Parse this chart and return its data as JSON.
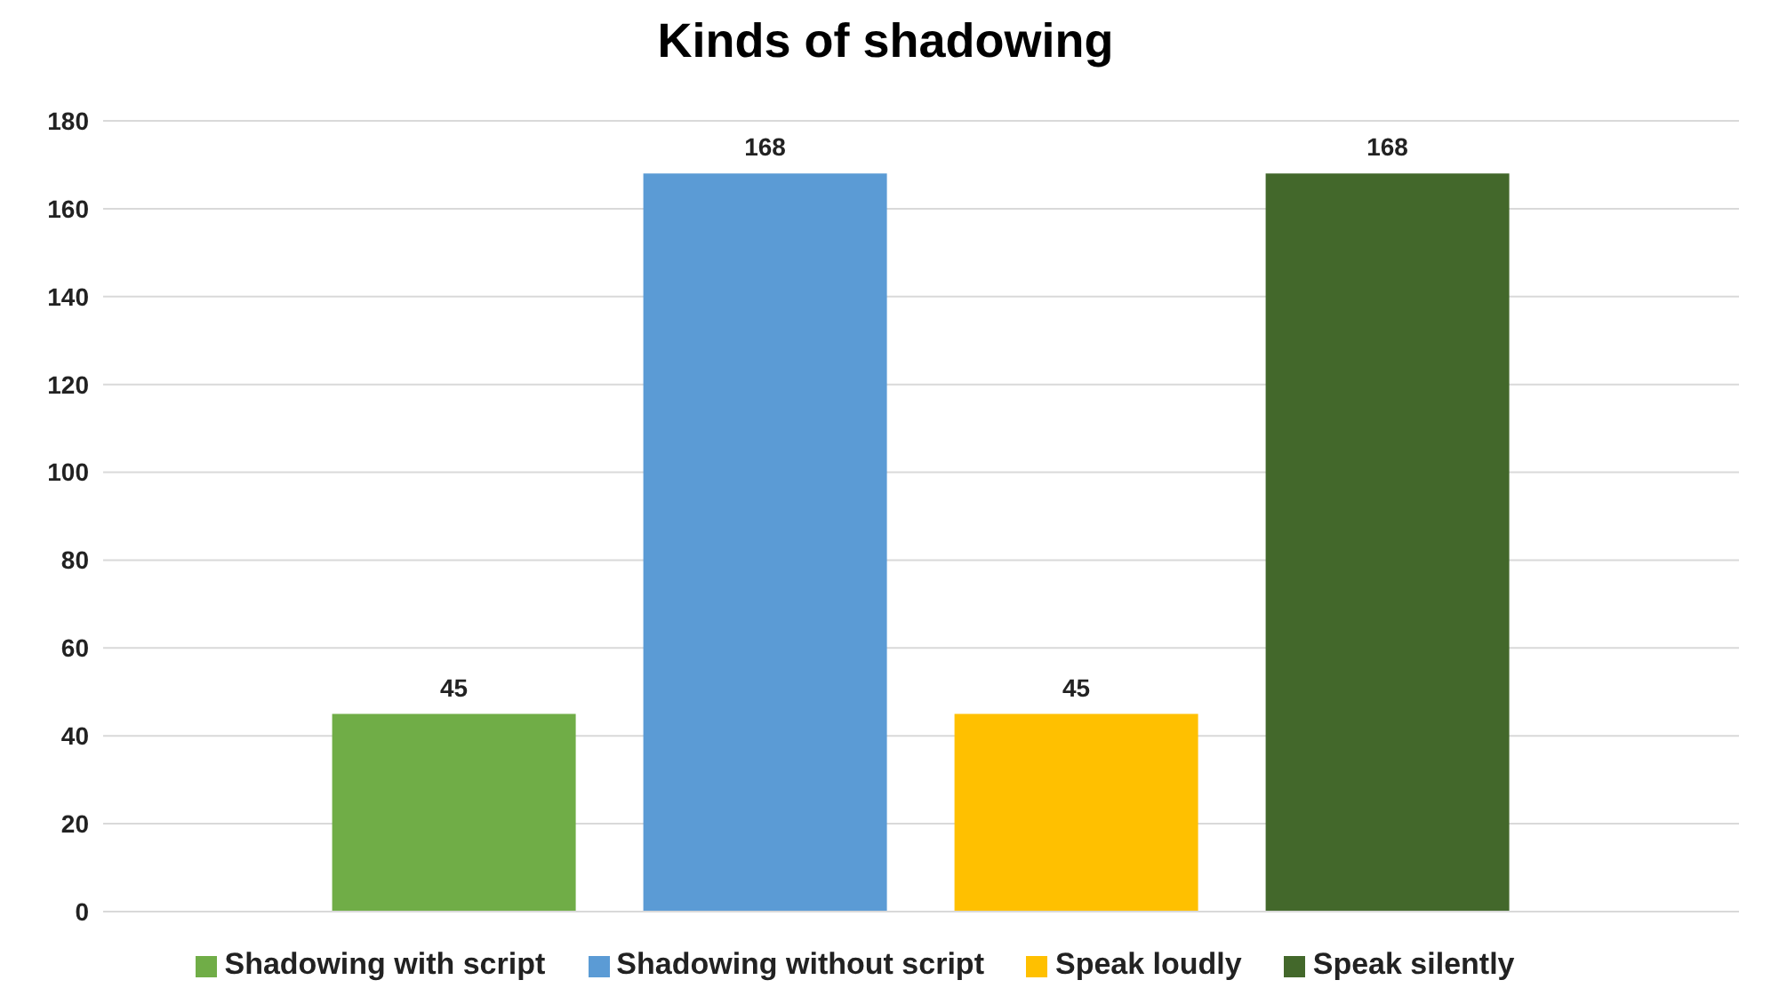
{
  "chart_data": {
    "type": "bar",
    "title": "Kinds of shadowing",
    "categories": [
      null
    ],
    "series": [
      {
        "name": "Shadowing with script",
        "color": "#70ad47",
        "values": [
          45
        ]
      },
      {
        "name": "Shadowing without script",
        "color": "#5b9bd5",
        "values": [
          168
        ]
      },
      {
        "name": "Speak loudly",
        "color": "#ffc000",
        "values": [
          45
        ]
      },
      {
        "name": "Speak silently",
        "color": "#43682b",
        "values": [
          168
        ]
      }
    ],
    "ylim": [
      0,
      180
    ],
    "yticks": [
      0,
      20,
      40,
      60,
      80,
      100,
      120,
      140,
      160,
      180
    ],
    "grid": "y",
    "legend": "bottom",
    "data_labels": true
  }
}
